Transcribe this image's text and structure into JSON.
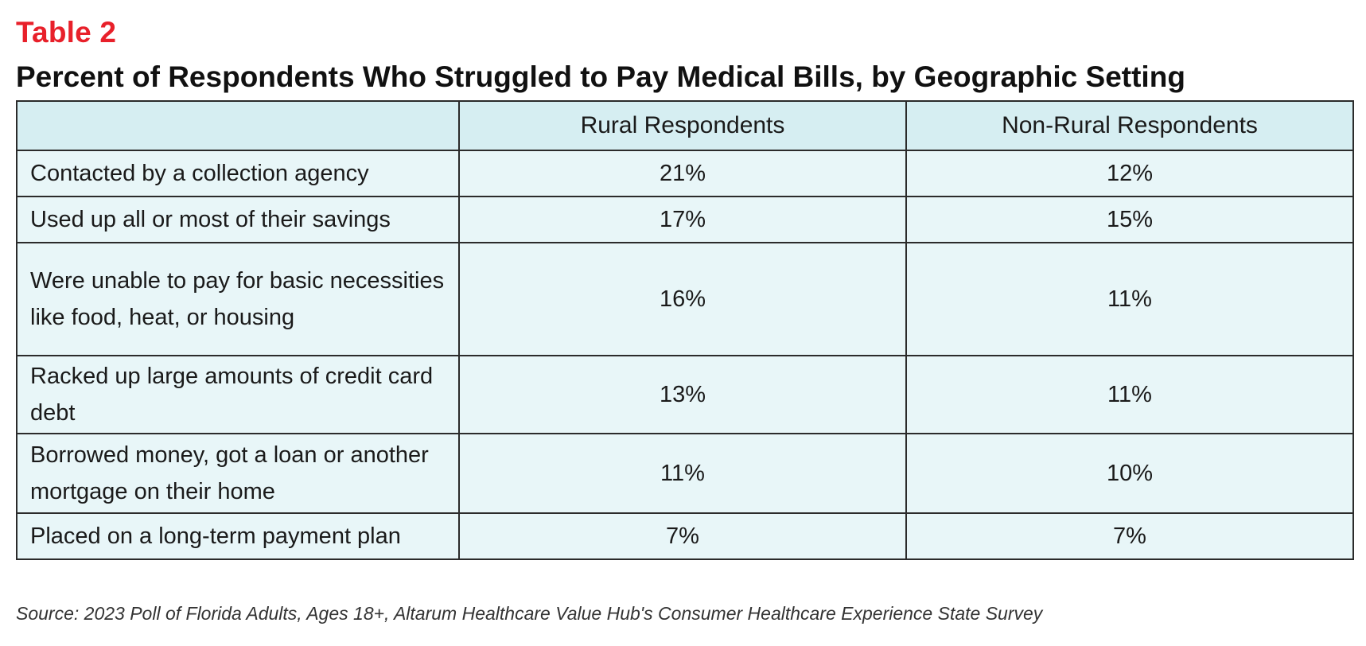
{
  "table_label": "Table 2",
  "title": "Percent of Respondents Who Struggled to Pay Medical Bills, by Geographic Setting",
  "columns": [
    "",
    "Rural Respondents",
    "Non-Rural Respondents"
  ],
  "rows": [
    {
      "label": "Contacted by a collection agency",
      "rural": "21%",
      "non_rural": "12%"
    },
    {
      "label": "Used up all or most of their savings",
      "rural": "17%",
      "non_rural": "15%"
    },
    {
      "label": "Were unable to pay for basic necessities like food, heat, or housing",
      "rural": "16%",
      "non_rural": "11%"
    },
    {
      "label": "Racked up large amounts of credit card debt",
      "rural": "13%",
      "non_rural": "11%"
    },
    {
      "label": "Borrowed money, got a loan or another mortgage on their home",
      "rural": "11%",
      "non_rural": "10%"
    },
    {
      "label": "Placed on a long-term payment plan",
      "rural": "7%",
      "non_rural": "7%"
    }
  ],
  "source": "Source: 2023 Poll of Florida Adults, Ages 18+, Altarum Healthcare Value Hub's Consumer Healthcare Experience State Survey",
  "colors": {
    "label_red": "#e8202a",
    "header_fill": "#d6eef2",
    "body_fill": "#e8f6f8",
    "border": "#2b2b2b"
  }
}
